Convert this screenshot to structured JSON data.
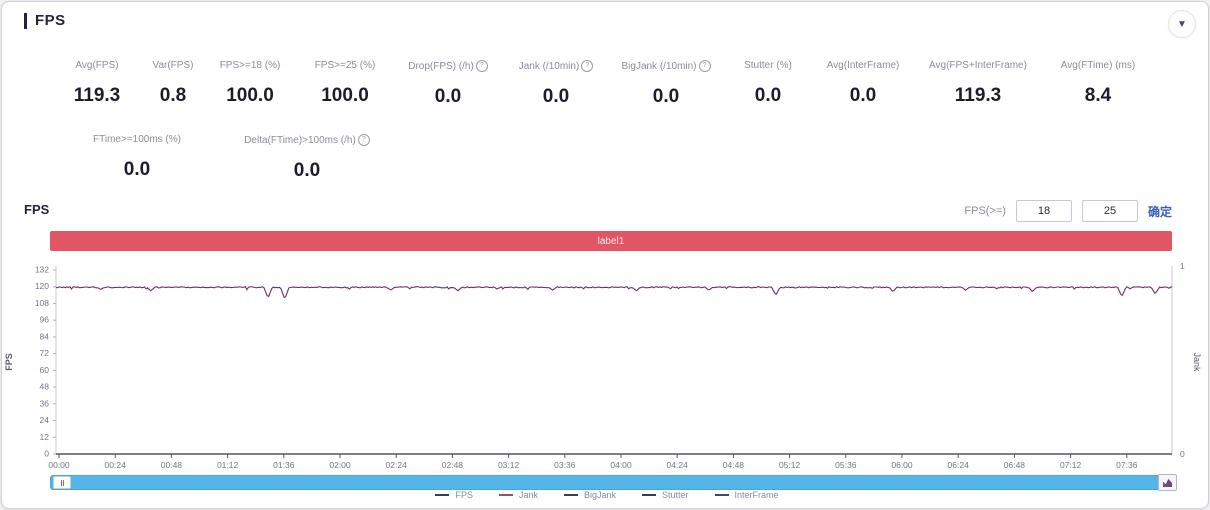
{
  "header": {
    "title": "FPS"
  },
  "metrics_row1": [
    {
      "label": "Avg(FPS)",
      "value": "119.3",
      "info": false
    },
    {
      "label": "Var(FPS)",
      "value": "0.8",
      "info": false
    },
    {
      "label": "FPS>=18 (%)",
      "value": "100.0",
      "info": false
    },
    {
      "label": "FPS>=25 (%)",
      "value": "100.0",
      "info": false
    },
    {
      "label": "Drop(FPS) (/h)",
      "value": "0.0",
      "info": true
    },
    {
      "label": "Jank (/10min)",
      "value": "0.0",
      "info": true
    },
    {
      "label": "BigJank (/10min)",
      "value": "0.0",
      "info": true
    },
    {
      "label": "Stutter (%)",
      "value": "0.0",
      "info": false
    },
    {
      "label": "Avg(InterFrame)",
      "value": "0.0",
      "info": false
    },
    {
      "label": "Avg(FPS+InterFrame)",
      "value": "119.3",
      "info": false
    },
    {
      "label": "Avg(FTime) (ms)",
      "value": "8.4",
      "info": false
    }
  ],
  "metrics_row2": [
    {
      "label": "FTime>=100ms (%)",
      "value": "0.0",
      "info": false
    },
    {
      "label": "Delta(FTime)>100ms (/h)",
      "value": "0.0",
      "info": true
    }
  ],
  "chart_section": {
    "title": "FPS",
    "threshold_label": "FPS(>=)",
    "threshold_value_1": "18",
    "threshold_value_2": "25",
    "confirm_label": "确定",
    "banner_text": "label1",
    "banner_color": "#e25565"
  },
  "chart_data": {
    "type": "line",
    "title": "FPS",
    "ylabel_left": "FPS",
    "ylabel_right": "Jank",
    "ylim_left": [
      0,
      132
    ],
    "ylim_right": [
      0,
      1
    ],
    "y_ticks_left": [
      132,
      120,
      108,
      96,
      84,
      72,
      60,
      48,
      36,
      24,
      12,
      0
    ],
    "y_ticks_right": [
      1,
      0
    ],
    "x_ticks": [
      "00:00",
      "00:24",
      "00:48",
      "01:12",
      "01:36",
      "02:00",
      "02:24",
      "02:48",
      "03:12",
      "03:36",
      "04:00",
      "04:24",
      "04:48",
      "05:12",
      "05:36",
      "06:00",
      "06:24",
      "06:48",
      "07:12",
      "07:36"
    ],
    "grid": false,
    "legend_position": "bottom",
    "series": [
      {
        "name": "FPS",
        "color": "#732d66",
        "avg": 119.3,
        "baseline": 120,
        "noise": 0.8,
        "dips": [
          {
            "frac": 0.04,
            "depth": 2.0
          },
          {
            "frac": 0.085,
            "depth": 3.0
          },
          {
            "frac": 0.19,
            "depth": 8.0
          },
          {
            "frac": 0.205,
            "depth": 9.0
          },
          {
            "frac": 0.3,
            "depth": 2.5
          },
          {
            "frac": 0.36,
            "depth": 3.0
          },
          {
            "frac": 0.445,
            "depth": 2.5
          },
          {
            "frac": 0.52,
            "depth": 3.0
          },
          {
            "frac": 0.585,
            "depth": 2.5
          },
          {
            "frac": 0.645,
            "depth": 6.0
          },
          {
            "frac": 0.75,
            "depth": 3.5
          },
          {
            "frac": 0.815,
            "depth": 2.5
          },
          {
            "frac": 0.875,
            "depth": 3.5
          },
          {
            "frac": 0.955,
            "depth": 7.0
          },
          {
            "frac": 0.985,
            "depth": 5.0
          }
        ]
      }
    ],
    "legend": [
      {
        "label": "FPS",
        "color": "#3d3d52"
      },
      {
        "label": "Jank",
        "color": "#96505a"
      },
      {
        "label": "BigJank",
        "color": "#3d3d52"
      },
      {
        "label": "Stutter",
        "color": "#3d3d52"
      },
      {
        "label": "InterFrame",
        "color": "#3d4a66"
      }
    ]
  }
}
